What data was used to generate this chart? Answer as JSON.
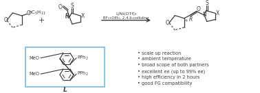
{
  "bg_color": "#ffffff",
  "line_color": "#3a3a3a",
  "box_color": "#6db3d4",
  "bullet_points": [
    "scale up reaction",
    "ambient temperature",
    "broad scope of both partners",
    "excellent ee (up to 99% ee)",
    "high efficiency in 2 hours",
    "good FG compatibility"
  ],
  "reagents_line1": "L/Ni(OTf)₂",
  "reagents_line2": "BF₃•OEt₂, 2,4,6-collidine",
  "ligand_label": "L",
  "figsize": [
    3.78,
    1.36
  ],
  "dpi": 100
}
